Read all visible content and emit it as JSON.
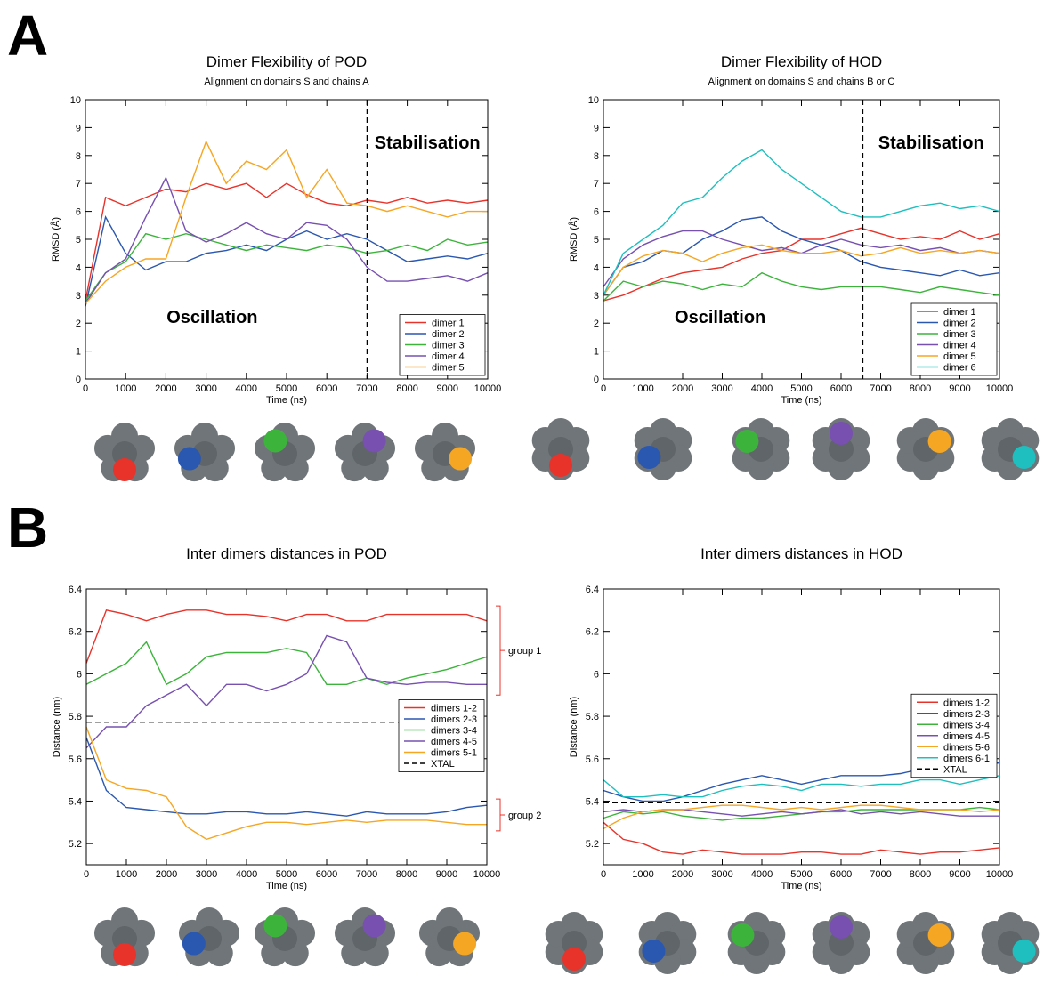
{
  "panel_labels": [
    "A",
    "B"
  ],
  "chart_data": [
    {
      "type": "line",
      "title": "Dimer Flexibility of POD",
      "subtitle": "Alignment on domains S and chains A",
      "xlabel": "Time (ns)",
      "ylabel": "RMSD (Å)",
      "x": [
        0,
        500,
        1000,
        1500,
        2000,
        2500,
        3000,
        3500,
        4000,
        4500,
        5000,
        5500,
        6000,
        6500,
        7000,
        7500,
        8000,
        8500,
        9000,
        9500,
        10000
      ],
      "xlim": [
        0,
        10000
      ],
      "xticks": [
        0,
        1000,
        2000,
        3000,
        4000,
        5000,
        6000,
        7000,
        8000,
        9000,
        10000
      ],
      "ylim": [
        0,
        10
      ],
      "yticks": [
        0,
        1,
        2,
        3,
        4,
        5,
        6,
        7,
        8,
        9,
        10
      ],
      "vline": 7000,
      "annotations": [
        "Oscillation",
        "Stabilisation"
      ],
      "legend": "lower right",
      "series": [
        {
          "name": "dimer 1",
          "color": "#e8332a",
          "values": [
            2.8,
            6.5,
            6.2,
            6.5,
            6.8,
            6.7,
            7.0,
            6.8,
            7.0,
            6.5,
            7.0,
            6.6,
            6.3,
            6.2,
            6.4,
            6.3,
            6.5,
            6.3,
            6.4,
            6.3,
            6.4
          ]
        },
        {
          "name": "dimer 2",
          "color": "#2a57b0",
          "values": [
            2.6,
            5.8,
            4.5,
            3.9,
            4.2,
            4.2,
            4.5,
            4.6,
            4.8,
            4.6,
            5.0,
            5.3,
            5.0,
            5.2,
            5.0,
            4.6,
            4.2,
            4.3,
            4.4,
            4.3,
            4.5
          ]
        },
        {
          "name": "dimer 3",
          "color": "#3cb43c",
          "values": [
            2.8,
            3.8,
            4.2,
            5.2,
            5.0,
            5.2,
            5.0,
            4.8,
            4.6,
            4.8,
            4.7,
            4.6,
            4.8,
            4.7,
            4.5,
            4.6,
            4.8,
            4.6,
            5.0,
            4.8,
            4.9
          ]
        },
        {
          "name": "dimer 4",
          "color": "#7750b0",
          "values": [
            2.7,
            3.8,
            4.3,
            5.8,
            7.2,
            5.3,
            4.9,
            5.2,
            5.6,
            5.2,
            5.0,
            5.6,
            5.5,
            5.0,
            4.0,
            3.5,
            3.5,
            3.6,
            3.7,
            3.5,
            3.8
          ]
        },
        {
          "name": "dimer 5",
          "color": "#f5a623",
          "values": [
            2.7,
            3.5,
            4.0,
            4.3,
            4.3,
            6.5,
            8.5,
            7.0,
            7.8,
            7.5,
            8.2,
            6.5,
            7.5,
            6.3,
            6.2,
            6.0,
            6.2,
            6.0,
            5.8,
            6.0,
            6.0
          ]
        }
      ]
    },
    {
      "type": "line",
      "title": "Dimer Flexibility of HOD",
      "subtitle": "Alignment on domains S and chains B or C",
      "xlabel": "Time (ns)",
      "ylabel": "RMSD (Å)",
      "x": [
        0,
        500,
        1000,
        1500,
        2000,
        2500,
        3000,
        3500,
        4000,
        4500,
        5000,
        5500,
        6000,
        6500,
        7000,
        7500,
        8000,
        8500,
        9000,
        9500,
        10000
      ],
      "xlim": [
        0,
        10000
      ],
      "xticks": [
        0,
        1000,
        2000,
        3000,
        4000,
        5000,
        6000,
        7000,
        8000,
        9000,
        10000
      ],
      "ylim": [
        0,
        10
      ],
      "yticks": [
        0,
        1,
        2,
        3,
        4,
        5,
        6,
        7,
        8,
        9,
        10
      ],
      "vline": 6550,
      "annotations": [
        "Oscillation",
        "Stabilisation"
      ],
      "legend": "lower right",
      "series": [
        {
          "name": "dimer 1",
          "color": "#e8332a",
          "values": [
            2.8,
            3.0,
            3.3,
            3.6,
            3.8,
            3.9,
            4.0,
            4.3,
            4.5,
            4.6,
            5.0,
            5.0,
            5.2,
            5.4,
            5.2,
            5.0,
            5.1,
            5.0,
            5.3,
            5.0,
            5.2
          ]
        },
        {
          "name": "dimer 2",
          "color": "#2a57b0",
          "values": [
            3.0,
            4.0,
            4.2,
            4.6,
            4.5,
            5.0,
            5.3,
            5.7,
            5.8,
            5.3,
            5.0,
            4.8,
            4.6,
            4.2,
            4.0,
            3.9,
            3.8,
            3.7,
            3.9,
            3.7,
            3.8
          ]
        },
        {
          "name": "dimer 3",
          "color": "#3cb43c",
          "values": [
            2.8,
            3.5,
            3.3,
            3.5,
            3.4,
            3.2,
            3.4,
            3.3,
            3.8,
            3.5,
            3.3,
            3.2,
            3.3,
            3.3,
            3.3,
            3.2,
            3.1,
            3.3,
            3.2,
            3.1,
            3.0
          ]
        },
        {
          "name": "dimer 4",
          "color": "#7750b0",
          "values": [
            3.3,
            4.3,
            4.8,
            5.1,
            5.3,
            5.3,
            5.0,
            4.8,
            4.6,
            4.7,
            4.5,
            4.8,
            5.0,
            4.8,
            4.7,
            4.8,
            4.6,
            4.7,
            4.5,
            4.6,
            4.5
          ]
        },
        {
          "name": "dimer 5",
          "color": "#f5a623",
          "values": [
            3.0,
            4.0,
            4.4,
            4.6,
            4.5,
            4.2,
            4.5,
            4.7,
            4.8,
            4.6,
            4.5,
            4.5,
            4.6,
            4.4,
            4.5,
            4.7,
            4.5,
            4.6,
            4.5,
            4.6,
            4.5
          ]
        },
        {
          "name": "dimer 6",
          "color": "#1fbfbf",
          "values": [
            3.0,
            4.5,
            5.0,
            5.5,
            6.3,
            6.5,
            7.2,
            7.8,
            8.2,
            7.5,
            7.0,
            6.5,
            6.0,
            5.8,
            5.8,
            6.0,
            6.2,
            6.3,
            6.1,
            6.2,
            6.0
          ]
        }
      ]
    },
    {
      "type": "line",
      "title": "Inter dimers distances in POD",
      "xlabel": "Time (ns)",
      "ylabel": "Distance (nm)",
      "x": [
        0,
        500,
        1000,
        1500,
        2000,
        2500,
        3000,
        3500,
        4000,
        4500,
        5000,
        5500,
        6000,
        6500,
        7000,
        7500,
        8000,
        8500,
        9000,
        9500,
        10000
      ],
      "xlim": [
        0,
        10000
      ],
      "xticks": [
        0,
        1000,
        2000,
        3000,
        4000,
        5000,
        6000,
        7000,
        8000,
        9000,
        10000
      ],
      "ylim": [
        5.1,
        6.4
      ],
      "yticks": [
        5.2,
        5.4,
        5.6,
        5.8,
        6,
        6.2,
        6.4
      ],
      "group_labels": [
        "group 1",
        "group 2"
      ],
      "legend": "center right",
      "reference_line": {
        "name": "XTAL",
        "value": 5.772
      },
      "series": [
        {
          "name": "dimers 1-2",
          "color": "#e8332a",
          "values": [
            6.05,
            6.3,
            6.28,
            6.25,
            6.28,
            6.3,
            6.3,
            6.28,
            6.28,
            6.27,
            6.25,
            6.28,
            6.28,
            6.25,
            6.25,
            6.28,
            6.28,
            6.28,
            6.28,
            6.28,
            6.25
          ]
        },
        {
          "name": "dimers 2-3",
          "color": "#2a57b0",
          "values": [
            5.7,
            5.45,
            5.37,
            5.36,
            5.35,
            5.34,
            5.34,
            5.35,
            5.35,
            5.34,
            5.34,
            5.35,
            5.34,
            5.33,
            5.35,
            5.34,
            5.34,
            5.34,
            5.35,
            5.37,
            5.38
          ]
        },
        {
          "name": "dimers 3-4",
          "color": "#3cb43c",
          "values": [
            5.95,
            6.0,
            6.05,
            6.15,
            5.95,
            6.0,
            6.08,
            6.1,
            6.1,
            6.1,
            6.12,
            6.1,
            5.95,
            5.95,
            5.98,
            5.95,
            5.98,
            6.0,
            6.02,
            6.05,
            6.08
          ]
        },
        {
          "name": "dimers 4-5",
          "color": "#7750b0",
          "values": [
            5.65,
            5.75,
            5.75,
            5.85,
            5.9,
            5.95,
            5.85,
            5.95,
            5.95,
            5.92,
            5.95,
            6.0,
            6.18,
            6.15,
            5.98,
            5.96,
            5.95,
            5.96,
            5.96,
            5.95,
            5.95
          ]
        },
        {
          "name": "dimers 5-1",
          "color": "#f5a623",
          "values": [
            5.75,
            5.5,
            5.46,
            5.45,
            5.42,
            5.28,
            5.22,
            5.25,
            5.28,
            5.3,
            5.3,
            5.29,
            5.3,
            5.31,
            5.3,
            5.31,
            5.31,
            5.31,
            5.3,
            5.29,
            5.29
          ]
        }
      ]
    },
    {
      "type": "line",
      "title": "Inter dimers distances in HOD",
      "xlabel": "Time (ns)",
      "ylabel": "Distance (nm)",
      "x": [
        0,
        500,
        1000,
        1500,
        2000,
        2500,
        3000,
        3500,
        4000,
        4500,
        5000,
        5500,
        6000,
        6500,
        7000,
        7500,
        8000,
        8500,
        9000,
        9500,
        10000
      ],
      "xlim": [
        0,
        10000
      ],
      "xticks": [
        0,
        1000,
        2000,
        3000,
        4000,
        5000,
        6000,
        7000,
        8000,
        9000,
        10000
      ],
      "ylim": [
        5.1,
        6.4
      ],
      "yticks": [
        5.2,
        5.4,
        5.6,
        5.8,
        6,
        6.2,
        6.4
      ],
      "legend": "center right",
      "reference_line": {
        "name": "XTAL",
        "value": 5.392
      },
      "series": [
        {
          "name": "dimers 1-2",
          "color": "#e8332a",
          "values": [
            5.3,
            5.22,
            5.2,
            5.16,
            5.15,
            5.17,
            5.16,
            5.15,
            5.15,
            5.15,
            5.16,
            5.16,
            5.15,
            5.15,
            5.17,
            5.16,
            5.15,
            5.16,
            5.16,
            5.17,
            5.18
          ]
        },
        {
          "name": "dimers 2-3",
          "color": "#2a57b0",
          "values": [
            5.45,
            5.42,
            5.4,
            5.4,
            5.42,
            5.45,
            5.48,
            5.5,
            5.52,
            5.5,
            5.48,
            5.5,
            5.52,
            5.52,
            5.52,
            5.53,
            5.55,
            5.55,
            5.57,
            5.57,
            5.58
          ]
        },
        {
          "name": "dimers 3-4",
          "color": "#3cb43c",
          "values": [
            5.32,
            5.35,
            5.34,
            5.35,
            5.33,
            5.32,
            5.31,
            5.32,
            5.32,
            5.33,
            5.34,
            5.35,
            5.35,
            5.36,
            5.36,
            5.36,
            5.36,
            5.36,
            5.36,
            5.37,
            5.36
          ]
        },
        {
          "name": "dimers 4-5",
          "color": "#7750b0",
          "values": [
            5.35,
            5.36,
            5.35,
            5.36,
            5.36,
            5.35,
            5.34,
            5.33,
            5.34,
            5.35,
            5.34,
            5.35,
            5.36,
            5.34,
            5.35,
            5.34,
            5.35,
            5.34,
            5.33,
            5.33,
            5.33
          ]
        },
        {
          "name": "dimers 5-6",
          "color": "#f5a623",
          "values": [
            5.27,
            5.32,
            5.35,
            5.36,
            5.36,
            5.37,
            5.38,
            5.38,
            5.37,
            5.36,
            5.37,
            5.36,
            5.37,
            5.38,
            5.38,
            5.37,
            5.36,
            5.36,
            5.36,
            5.35,
            5.36
          ]
        },
        {
          "name": "dimers 6-1",
          "color": "#1fbfbf",
          "values": [
            5.5,
            5.42,
            5.42,
            5.43,
            5.42,
            5.42,
            5.45,
            5.47,
            5.48,
            5.47,
            5.45,
            5.48,
            5.48,
            5.47,
            5.48,
            5.48,
            5.5,
            5.5,
            5.48,
            5.5,
            5.52
          ]
        }
      ]
    }
  ]
}
